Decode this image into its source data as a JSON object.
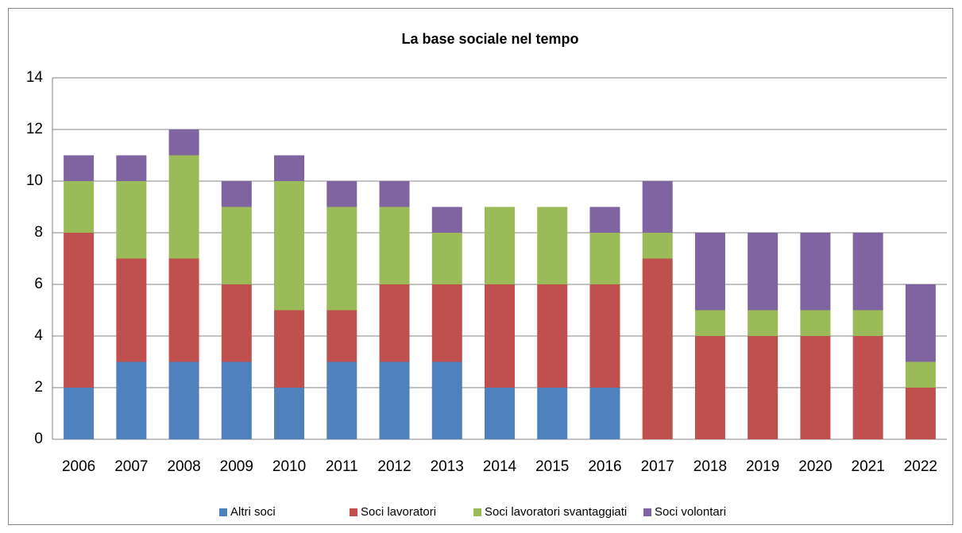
{
  "chart_data": {
    "type": "stacked_bar",
    "title": "La base sociale nel tempo",
    "categories": [
      "2006",
      "2007",
      "2008",
      "2009",
      "2010",
      "2011",
      "2012",
      "2013",
      "2014",
      "2015",
      "2016",
      "2017",
      "2018",
      "2019",
      "2020",
      "2021",
      "2022"
    ],
    "series": [
      {
        "name": "Altri soci",
        "color": "#4f81bd",
        "values": [
          2,
          3,
          3,
          3,
          2,
          3,
          3,
          3,
          2,
          2,
          2,
          0,
          0,
          0,
          0,
          0,
          0
        ]
      },
      {
        "name": "Soci lavoratori",
        "color": "#c0504d",
        "values": [
          6,
          4,
          4,
          3,
          3,
          2,
          3,
          3,
          4,
          4,
          4,
          7,
          4,
          4,
          4,
          4,
          2
        ]
      },
      {
        "name": "Soci lavoratori svantaggiati",
        "color": "#9bbb59",
        "values": [
          2,
          3,
          4,
          3,
          5,
          4,
          3,
          2,
          3,
          3,
          2,
          1,
          1,
          1,
          1,
          1,
          1
        ]
      },
      {
        "name": "Soci volontari",
        "color": "#8064a2",
        "values": [
          1,
          1,
          1,
          1,
          1,
          1,
          1,
          1,
          0,
          0,
          1,
          2,
          3,
          3,
          3,
          3,
          3
        ]
      }
    ],
    "ylim": [
      0,
      14
    ],
    "yticks": [
      0,
      2,
      4,
      6,
      8,
      10,
      12,
      14
    ],
    "grid": true,
    "legend": "bottom"
  }
}
